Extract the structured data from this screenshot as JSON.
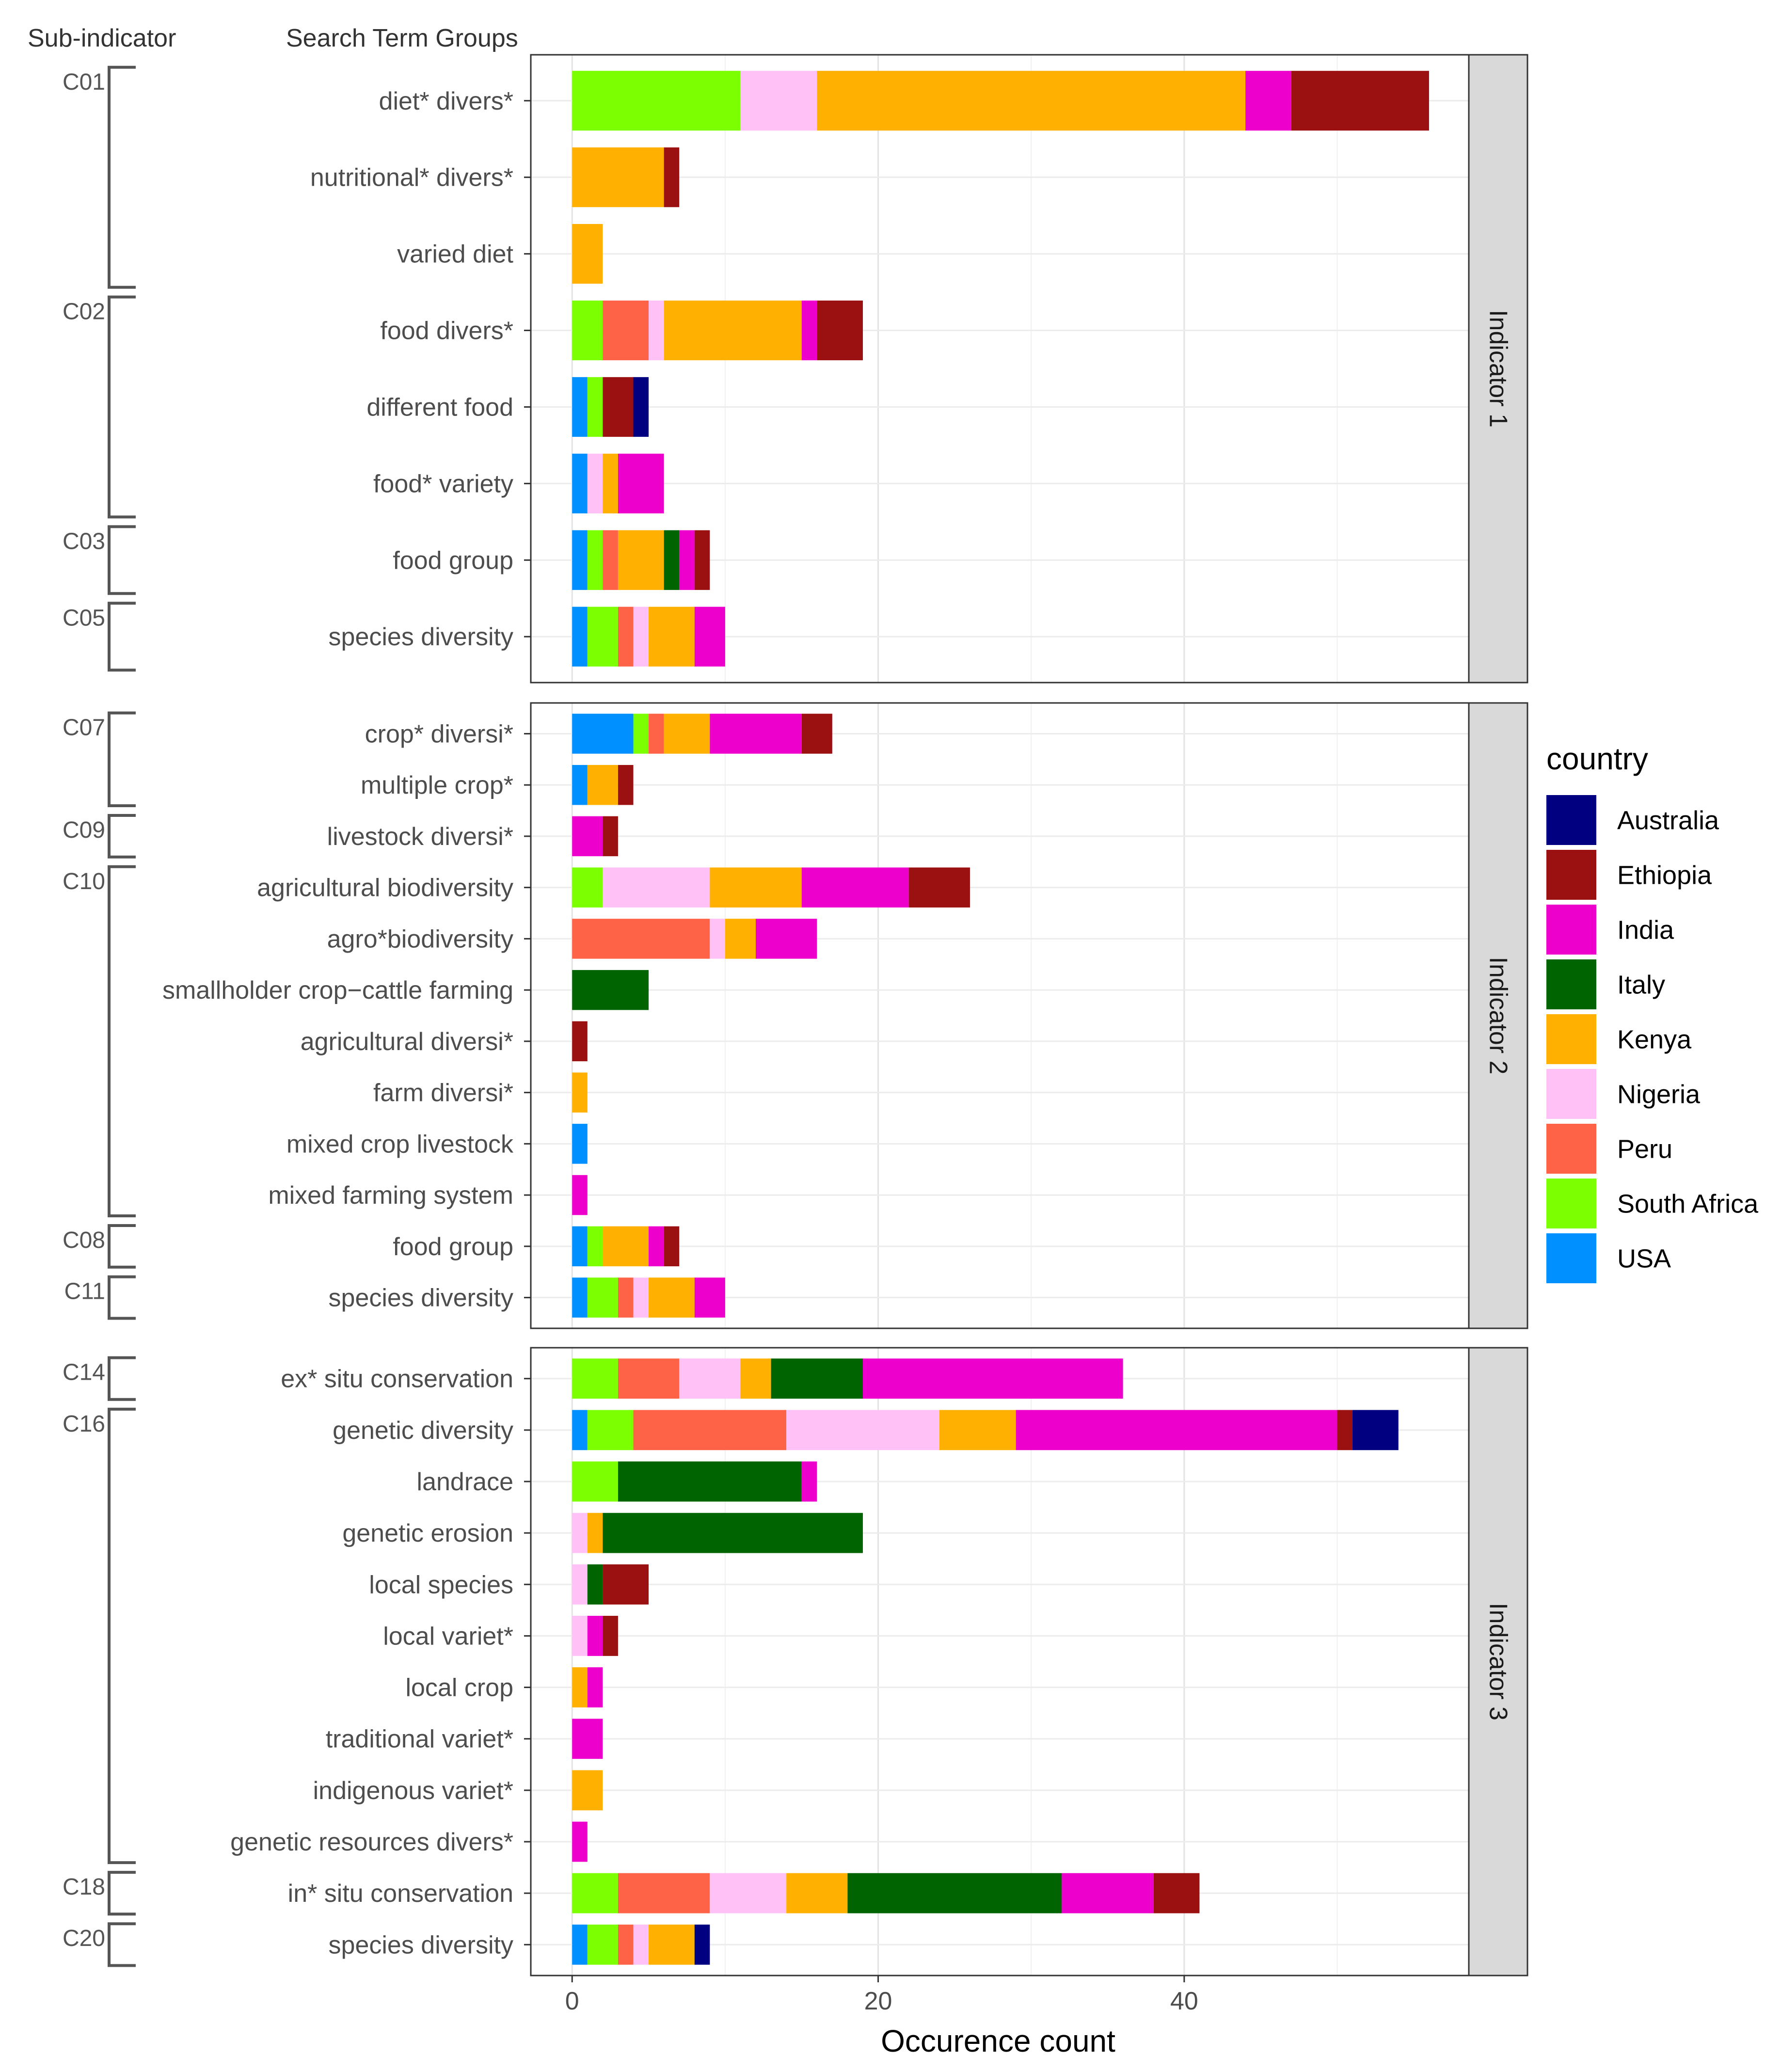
{
  "chart_data": {
    "type": "bar",
    "orientation": "horizontal",
    "stacked": true,
    "xlabel": "Occurence count",
    "x_ticks": [
      0,
      20,
      40
    ],
    "xlim": [
      -2.7,
      58.6
    ],
    "grid": true,
    "header_left": "Sub-indicator",
    "header_right": "Search Term Groups",
    "legend": {
      "title": "country",
      "position": "right",
      "entries": [
        {
          "name": "Australia",
          "color": "#000080"
        },
        {
          "name": "Ethiopia",
          "color": "#9b1010"
        },
        {
          "name": "India",
          "color": "#ee00cc"
        },
        {
          "name": "Italy",
          "color": "#006400"
        },
        {
          "name": "Kenya",
          "color": "#ffb000"
        },
        {
          "name": "Nigeria",
          "color": "#ffc1f6"
        },
        {
          "name": "Peru",
          "color": "#ff6347"
        },
        {
          "name": "South Africa",
          "color": "#7cff00"
        },
        {
          "name": "USA",
          "color": "#0090ff"
        }
      ]
    },
    "stack_order": [
      "USA",
      "South Africa",
      "Peru",
      "Nigeria",
      "Kenya",
      "Italy",
      "India",
      "Ethiopia",
      "Australia"
    ],
    "panels": [
      {
        "strip": "Indicator 1",
        "rows": [
          {
            "term": "diet* divers*",
            "values": {
              "South Africa": 11,
              "Nigeria": 5,
              "Kenya": 28,
              "India": 3,
              "Ethiopia": 9
            }
          },
          {
            "term": "nutritional* divers*",
            "values": {
              "Kenya": 6,
              "Ethiopia": 1
            }
          },
          {
            "term": "varied diet",
            "values": {
              "Kenya": 2
            }
          },
          {
            "term": "food divers*",
            "values": {
              "South Africa": 2,
              "Peru": 3,
              "Nigeria": 1,
              "Kenya": 9,
              "India": 1,
              "Ethiopia": 3
            }
          },
          {
            "term": "different food",
            "values": {
              "USA": 1,
              "South Africa": 1,
              "Ethiopia": 2,
              "Australia": 1
            }
          },
          {
            "term": "food* variety",
            "values": {
              "USA": 1,
              "Nigeria": 1,
              "Kenya": 1,
              "India": 3
            }
          },
          {
            "term": "food group",
            "values": {
              "USA": 1,
              "South Africa": 1,
              "Peru": 1,
              "Kenya": 3,
              "Italy": 1,
              "India": 1,
              "Ethiopia": 1
            }
          },
          {
            "term": "species diversity",
            "values": {
              "USA": 1,
              "South Africa": 2,
              "Peru": 1,
              "Nigeria": 1,
              "Kenya": 3,
              "India": 2
            }
          }
        ],
        "brackets": [
          {
            "label": "C01",
            "first": 0,
            "last": 2
          },
          {
            "label": "C02",
            "first": 3,
            "last": 5
          },
          {
            "label": "C03",
            "first": 6,
            "last": 6
          },
          {
            "label": "C05",
            "first": 7,
            "last": 7
          }
        ]
      },
      {
        "strip": "Indicator 2",
        "rows": [
          {
            "term": "crop* diversi*",
            "values": {
              "USA": 4,
              "South Africa": 1,
              "Peru": 1,
              "Kenya": 3,
              "India": 6,
              "Ethiopia": 2
            }
          },
          {
            "term": "multiple crop*",
            "values": {
              "USA": 1,
              "Kenya": 2,
              "Ethiopia": 1
            }
          },
          {
            "term": "livestock diversi*",
            "values": {
              "India": 2,
              "Ethiopia": 1
            }
          },
          {
            "term": "agricultural biodiversity",
            "values": {
              "South Africa": 2,
              "Nigeria": 7,
              "Kenya": 6,
              "India": 7,
              "Ethiopia": 4
            }
          },
          {
            "term": "agro*biodiversity",
            "values": {
              "Peru": 9,
              "Nigeria": 1,
              "Kenya": 2,
              "India": 4
            }
          },
          {
            "term": "smallholder crop−cattle farming",
            "values": {
              "Italy": 5
            }
          },
          {
            "term": "agricultural diversi*",
            "values": {
              "Ethiopia": 1
            }
          },
          {
            "term": "farm diversi*",
            "values": {
              "Kenya": 1
            }
          },
          {
            "term": "mixed crop livestock",
            "values": {
              "USA": 1
            }
          },
          {
            "term": "mixed farming system",
            "values": {
              "India": 1
            }
          },
          {
            "term": "food group",
            "values": {
              "USA": 1,
              "South Africa": 1,
              "Kenya": 3,
              "India": 1,
              "Ethiopia": 1
            }
          },
          {
            "term": "species diversity",
            "values": {
              "USA": 1,
              "South Africa": 2,
              "Peru": 1,
              "Nigeria": 1,
              "Kenya": 3,
              "India": 2
            }
          }
        ],
        "brackets": [
          {
            "label": "C07",
            "first": 0,
            "last": 1
          },
          {
            "label": "C09",
            "first": 2,
            "last": 2
          },
          {
            "label": "C10",
            "first": 3,
            "last": 9
          },
          {
            "label": "C08",
            "first": 10,
            "last": 10
          },
          {
            "label": "C11",
            "first": 11,
            "last": 11
          }
        ]
      },
      {
        "strip": "Indicator 3",
        "rows": [
          {
            "term": "ex* situ conservation",
            "values": {
              "South Africa": 3,
              "Peru": 4,
              "Nigeria": 4,
              "Kenya": 2,
              "Italy": 6,
              "India": 17
            }
          },
          {
            "term": "genetic diversity",
            "values": {
              "USA": 1,
              "South Africa": 3,
              "Peru": 10,
              "Nigeria": 10,
              "Kenya": 5,
              "India": 21,
              "Ethiopia": 1,
              "Australia": 3
            }
          },
          {
            "term": "landrace",
            "values": {
              "South Africa": 3,
              "Italy": 12,
              "India": 1
            }
          },
          {
            "term": "genetic erosion",
            "values": {
              "Nigeria": 1,
              "Kenya": 1,
              "Italy": 17
            }
          },
          {
            "term": "local species",
            "values": {
              "Nigeria": 1,
              "Italy": 1,
              "Ethiopia": 3
            }
          },
          {
            "term": "local variet*",
            "values": {
              "Nigeria": 1,
              "India": 1,
              "Ethiopia": 1
            }
          },
          {
            "term": "local crop",
            "values": {
              "Kenya": 1,
              "India": 1
            }
          },
          {
            "term": "traditional variet*",
            "values": {
              "India": 2
            }
          },
          {
            "term": "indigenous variet*",
            "values": {
              "Kenya": 2
            }
          },
          {
            "term": "genetic resources divers*",
            "values": {
              "India": 1
            }
          },
          {
            "term": "in* situ conservation",
            "values": {
              "South Africa": 3,
              "Peru": 6,
              "Nigeria": 5,
              "Kenya": 4,
              "Italy": 14,
              "India": 6,
              "Ethiopia": 3
            }
          },
          {
            "term": "species diversity",
            "values": {
              "USA": 1,
              "South Africa": 2,
              "Peru": 1,
              "Nigeria": 1,
              "Kenya": 3,
              "Australia": 1
            }
          }
        ],
        "brackets": [
          {
            "label": "C14",
            "first": 0,
            "last": 0
          },
          {
            "label": "C16",
            "first": 1,
            "last": 9
          },
          {
            "label": "C18",
            "first": 10,
            "last": 10
          },
          {
            "label": "C20",
            "first": 11,
            "last": 11
          }
        ]
      }
    ]
  }
}
